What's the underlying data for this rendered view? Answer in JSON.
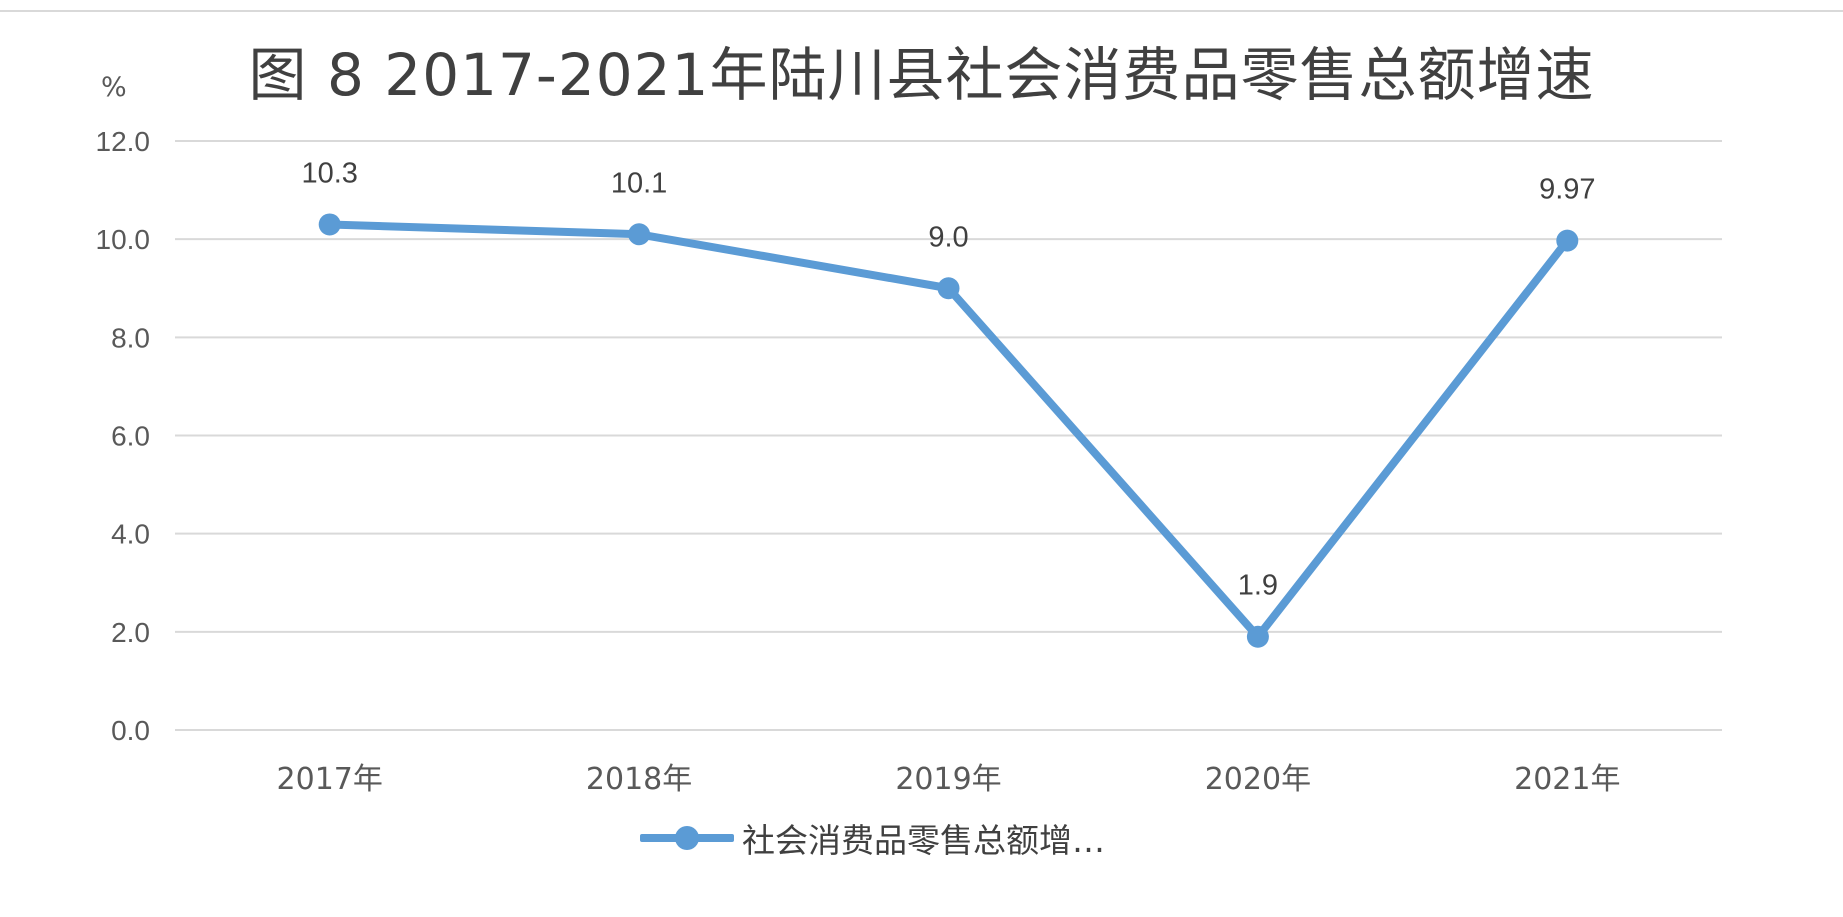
{
  "chart_data": {
    "type": "line",
    "title": "图 8 2017-2021年陆川县社会消费品零售总额增速",
    "ylabel": "%",
    "xlabel": "",
    "categories": [
      "2017年",
      "2018年",
      "2019年",
      "2020年",
      "2021年"
    ],
    "series": [
      {
        "name": "社会消费品零售总额增…",
        "values": [
          10.3,
          10.1,
          9.0,
          1.9,
          9.97
        ],
        "data_labels": [
          "10.3",
          "10.1",
          "9.0",
          "1.9",
          "9.97"
        ],
        "color": "#5b9bd5"
      }
    ],
    "ylim": [
      0,
      12
    ],
    "yticks": [
      "0.0",
      "2.0",
      "4.0",
      "6.0",
      "8.0",
      "10.0",
      "12.0"
    ],
    "grid": true,
    "legend_position": "bottom"
  },
  "colors": {
    "series": "#5b9bd5",
    "grid": "#d9d9d9",
    "text": "#404040"
  }
}
